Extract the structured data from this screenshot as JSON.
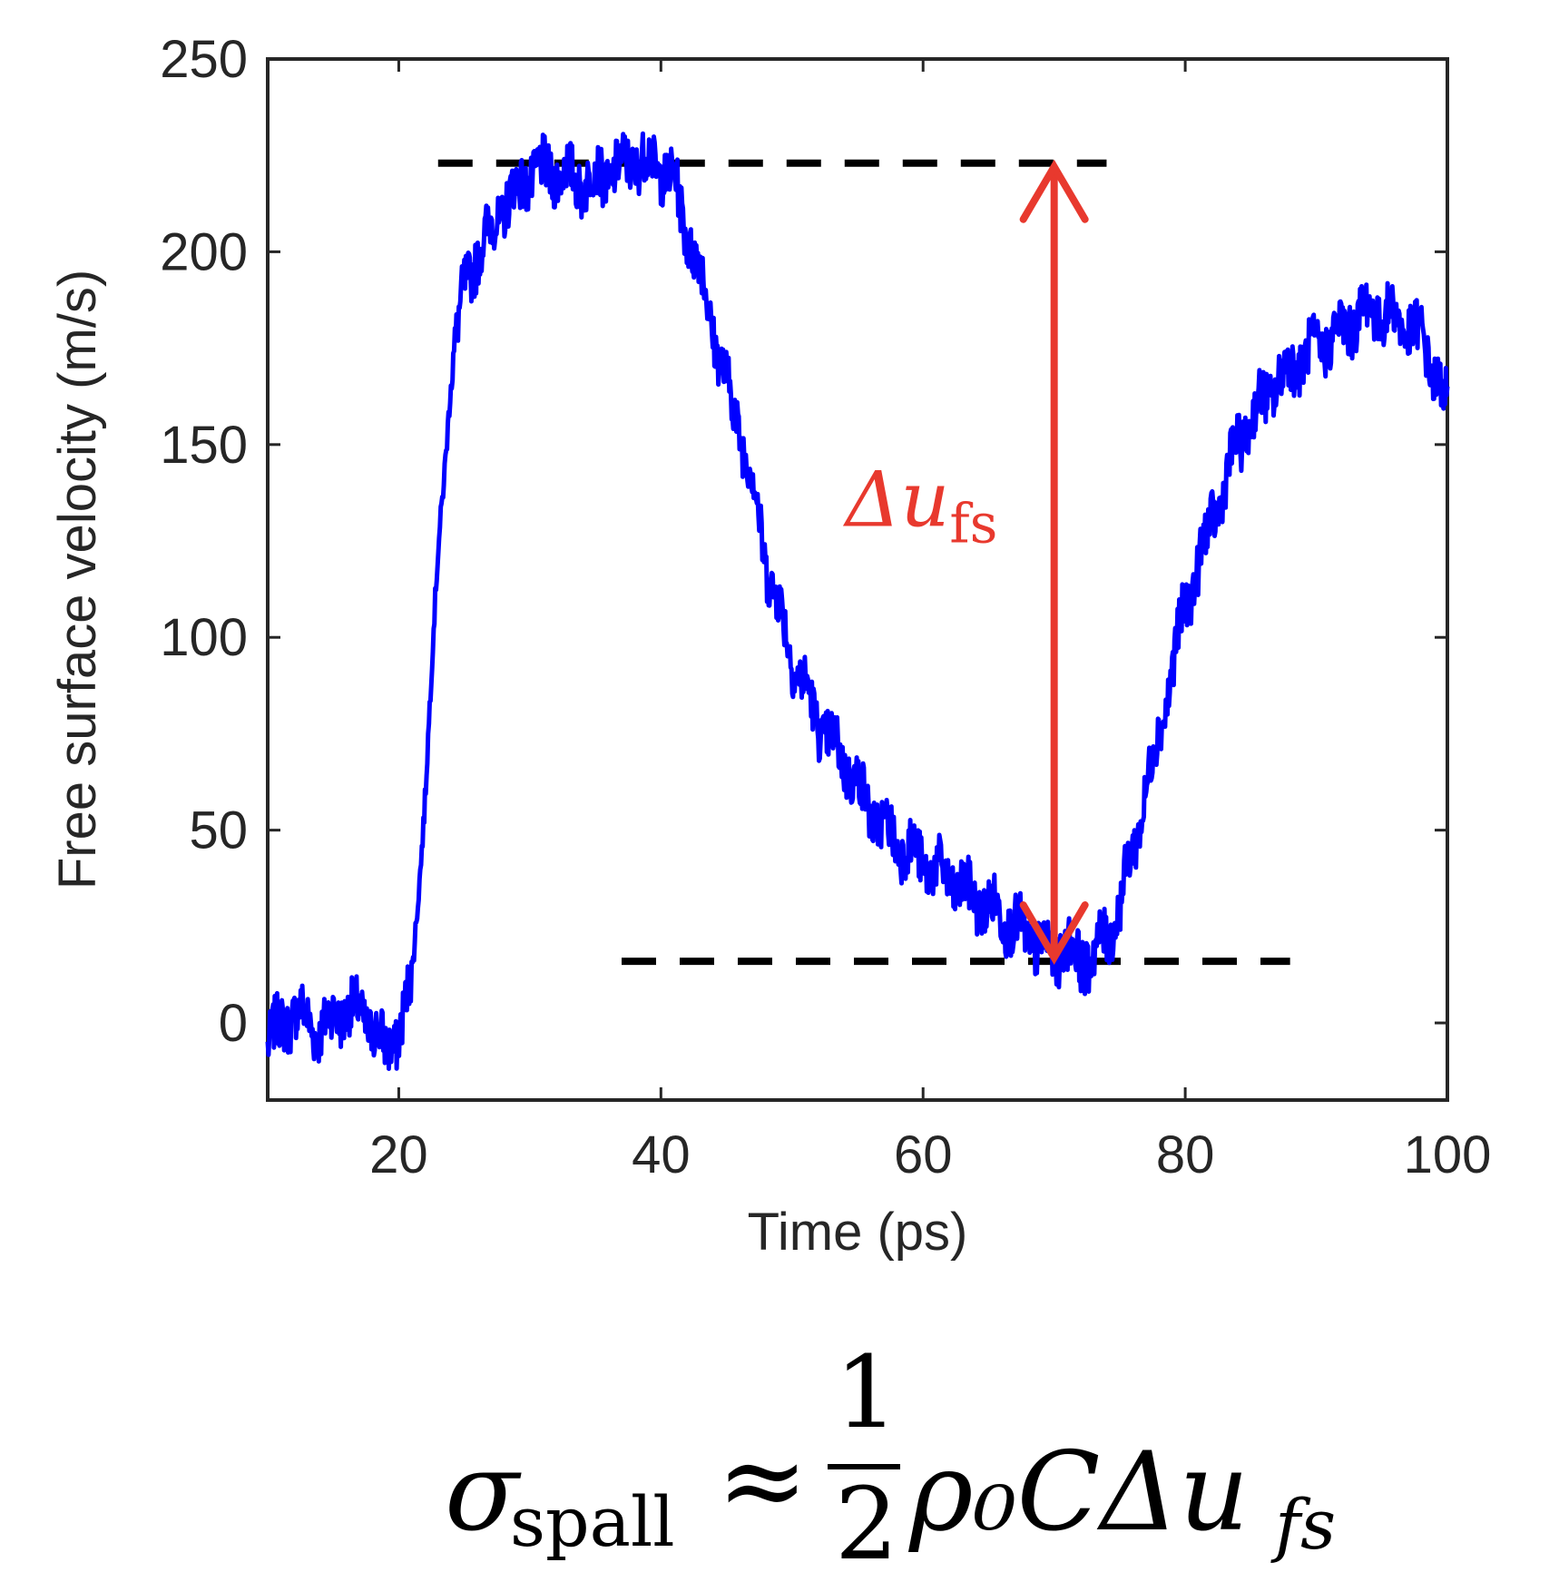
{
  "chart_data": {
    "type": "line",
    "title": "",
    "xlabel": "Time (ps)",
    "ylabel": "Free surface velocity (m/s)",
    "xlim": [
      10,
      100
    ],
    "ylim": [
      -20,
      250
    ],
    "xticks": [
      20,
      40,
      60,
      80,
      100
    ],
    "yticks": [
      0,
      50,
      100,
      150,
      200,
      250
    ],
    "grid": false,
    "series": [
      {
        "name": "free surface velocity",
        "color": "#0000ff",
        "x": [
          10,
          12,
          14,
          16,
          18,
          19,
          20,
          21,
          22,
          23,
          24,
          25,
          26,
          27,
          28,
          30,
          32,
          34,
          36,
          38,
          40,
          41,
          42,
          43,
          44,
          45,
          46,
          47,
          48,
          50,
          52,
          54,
          56,
          58,
          60,
          62,
          64,
          66,
          68,
          70,
          71,
          72,
          73,
          74,
          75,
          76,
          77,
          78,
          79,
          80,
          82,
          84,
          86,
          88,
          90,
          92,
          94,
          96,
          98,
          100
        ],
        "values": [
          -5,
          3,
          -2,
          4,
          0,
          -8,
          -2,
          10,
          60,
          120,
          170,
          190,
          200,
          205,
          212,
          220,
          221,
          218,
          220,
          224,
          222,
          218,
          205,
          195,
          180,
          165,
          155,
          140,
          120,
          95,
          78,
          68,
          55,
          47,
          42,
          37,
          32,
          28,
          22,
          18,
          20,
          16,
          18,
          22,
          30,
          45,
          60,
          75,
          92,
          108,
          130,
          150,
          162,
          170,
          175,
          180,
          185,
          183,
          178,
          160
        ]
      }
    ],
    "reference_lines": [
      {
        "name": "upper plateau",
        "y": 223,
        "x_start": 23,
        "x_end": 74,
        "style": "dashed",
        "color": "#000000"
      },
      {
        "name": "lower minimum",
        "y": 16,
        "x_start": 37,
        "x_end": 88,
        "style": "dashed",
        "color": "#000000"
      }
    ],
    "annotations": [
      {
        "name": "delta arrow",
        "x": 70,
        "y_from": 16,
        "y_to": 223,
        "color": "#e8392e",
        "label_main": "Δu",
        "label_sub": "fs"
      }
    ]
  },
  "formula": {
    "sigma": "σ",
    "sigma_sub": "spall",
    "approx": "≈",
    "numerator": "1",
    "denominator": "2",
    "rest": "ρ₀CΔu",
    "rest_sub": "fs"
  }
}
